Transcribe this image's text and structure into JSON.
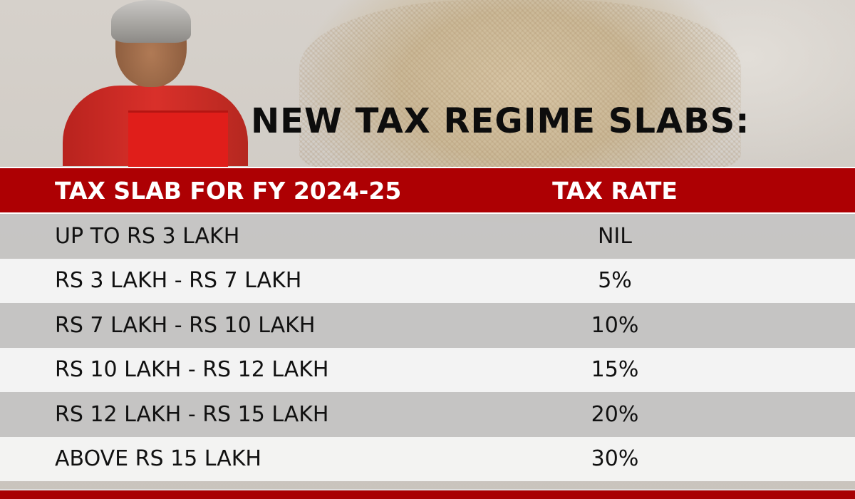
{
  "title": "NEW TAX REGIME SLABS:",
  "colors": {
    "header_red": "#ad0003",
    "row_dark": "#c3c3c3",
    "row_light": "#f5f5f5",
    "text": "#111111"
  },
  "table": {
    "headers": [
      "TAX SLAB FOR FY 2024-25",
      "TAX RATE"
    ],
    "rows": [
      {
        "slab": "UP TO RS 3 LAKH",
        "rate": "NIL"
      },
      {
        "slab": "RS 3 LAKH - RS 7 LAKH",
        "rate": "5%"
      },
      {
        "slab": "RS 7 LAKH - RS 10 LAKH",
        "rate": "10%"
      },
      {
        "slab": "RS 10 LAKH - RS 12 LAKH",
        "rate": "15%"
      },
      {
        "slab": "RS 12 LAKH - RS 15 LAKH",
        "rate": "20%"
      },
      {
        "slab": "ABOVE RS 15 LAKH",
        "rate": "30%"
      }
    ]
  }
}
